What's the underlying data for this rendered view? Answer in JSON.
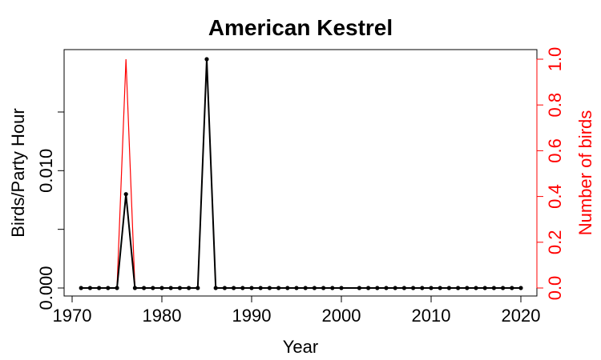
{
  "chart_data": {
    "type": "line",
    "title": "American Kestrel",
    "xlabel": "Year",
    "ylabel_left": "Birds/Party Hour",
    "ylabel_right": "Number of birds",
    "xlim": [
      1970,
      2020
    ],
    "ylim_left": [
      0,
      0.0195
    ],
    "ylim_right": [
      0,
      1.0
    ],
    "x_ticks": [
      "1970",
      "1980",
      "1990",
      "2000",
      "2010",
      "2020"
    ],
    "y_left_ticks": [
      "0.000",
      "0.010"
    ],
    "y_right_ticks": [
      "0.0",
      "0.2",
      "0.4",
      "0.6",
      "0.8",
      "1.0"
    ],
    "series": [
      {
        "name": "Birds/Party Hour",
        "axis": "left",
        "color": "#000000",
        "markers": true,
        "x": [
          1971,
          1972,
          1973,
          1974,
          1975,
          1976,
          1977,
          1978,
          1979,
          1980,
          1981,
          1982,
          1983,
          1984,
          1985,
          1986,
          1987,
          1988,
          1989,
          1990,
          1991,
          1992,
          1993,
          1994,
          1995,
          1996,
          1997,
          1998,
          1999,
          2000,
          2002,
          2003,
          2004,
          2005,
          2006,
          2007,
          2008,
          2009,
          2010,
          2011,
          2012,
          2013,
          2014,
          2015,
          2016,
          2017,
          2018,
          2019,
          2020
        ],
        "values": [
          0,
          0,
          0,
          0,
          0,
          0.008,
          0,
          0,
          0,
          0,
          0,
          0,
          0,
          0,
          0.0195,
          0,
          0,
          0,
          0,
          0,
          0,
          0,
          0,
          0,
          0,
          0,
          0,
          0,
          0,
          0,
          0,
          0,
          0,
          0,
          0,
          0,
          0,
          0,
          0,
          0,
          0,
          0,
          0,
          0,
          0,
          0,
          0,
          0,
          0
        ]
      },
      {
        "name": "Number of birds",
        "axis": "right",
        "color": "#ff0000",
        "markers": false,
        "x": [
          1971,
          1972,
          1973,
          1974,
          1975,
          1976,
          1977,
          1978,
          1979,
          1980,
          1981,
          1982,
          1983,
          1984,
          1985,
          1986,
          1987,
          1988,
          1989,
          1990,
          1991,
          1992,
          1993,
          1994,
          1995,
          1996,
          1997,
          1998,
          1999,
          2000,
          2002,
          2003,
          2004,
          2005,
          2006,
          2007,
          2008,
          2009,
          2010,
          2011,
          2012,
          2013,
          2014,
          2015,
          2016,
          2017,
          2018,
          2019,
          2020
        ],
        "values": [
          0,
          0,
          0,
          0,
          0,
          1,
          0,
          0,
          0,
          0,
          0,
          0,
          0,
          0,
          1,
          0,
          0,
          0,
          0,
          0,
          0,
          0,
          0,
          0,
          0,
          0,
          0,
          0,
          0,
          0,
          0,
          0,
          0,
          0,
          0,
          0,
          0,
          0,
          0,
          0,
          0,
          0,
          0,
          0,
          0,
          0,
          0,
          0,
          0
        ]
      }
    ],
    "grid": false
  }
}
